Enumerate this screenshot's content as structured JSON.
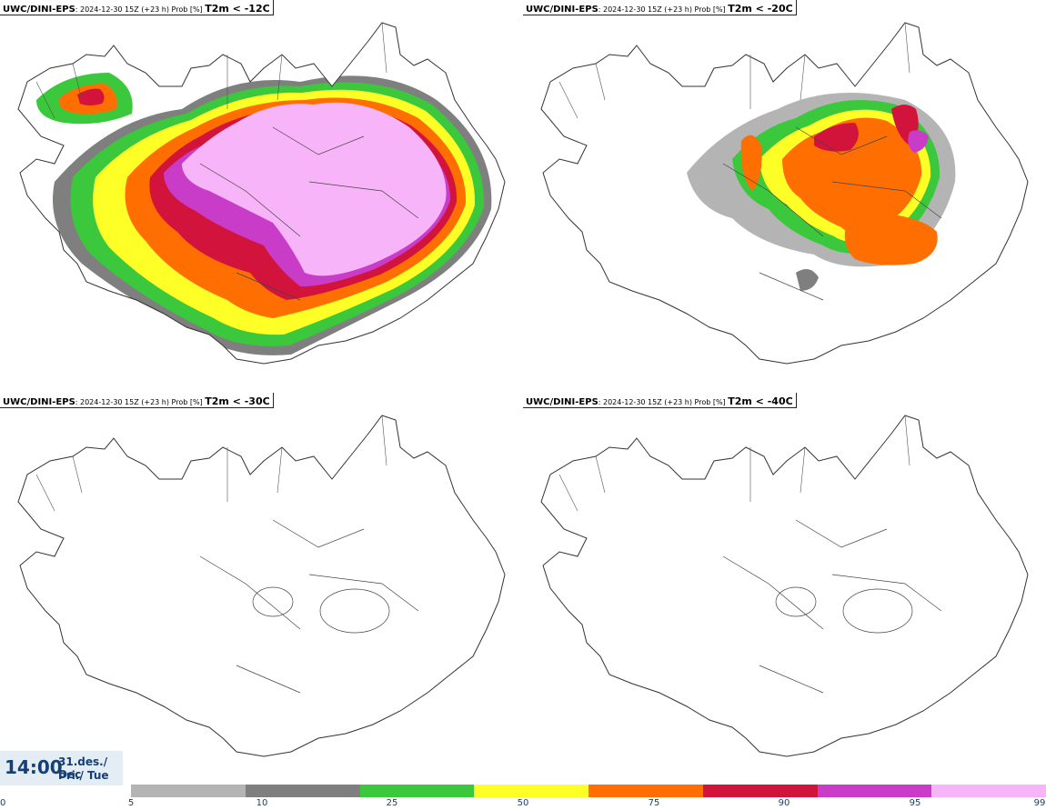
{
  "panels": [
    {
      "source": "UWC/DINI-EPS",
      "meta": ": 2024-12-30 15Z (+23 h) Prob [%] ",
      "threshold": "T2m < -12C",
      "field": "minus12"
    },
    {
      "source": "UWC/DINI-EPS",
      "meta": ": 2024-12-30 15Z (+23 h) Prob [%] ",
      "threshold": "T2m < -20C",
      "field": "minus20"
    },
    {
      "source": "UWC/DINI-EPS",
      "meta": ": 2024-12-30 15Z (+23 h) Prob [%] ",
      "threshold": "T2m < -30C",
      "field": "none"
    },
    {
      "source": "UWC/DINI-EPS",
      "meta": ": 2024-12-30 15Z (+23 h) Prob [%] ",
      "threshold": "T2m < -40C",
      "field": "none"
    }
  ],
  "time": {
    "clock": "14:00",
    "date": "31.des./ Dec",
    "weekday": "Þri./ Tue"
  },
  "legend": {
    "ticks": [
      "0",
      "5",
      "10",
      "25",
      "50",
      "75",
      "90",
      "95",
      "99"
    ],
    "colors": [
      "#b4b4b4",
      "#7f7f7f",
      "#3cc83c",
      "#ffff28",
      "#ff6e00",
      "#d2143c",
      "#c83cc8",
      "#f8b4f8"
    ]
  }
}
